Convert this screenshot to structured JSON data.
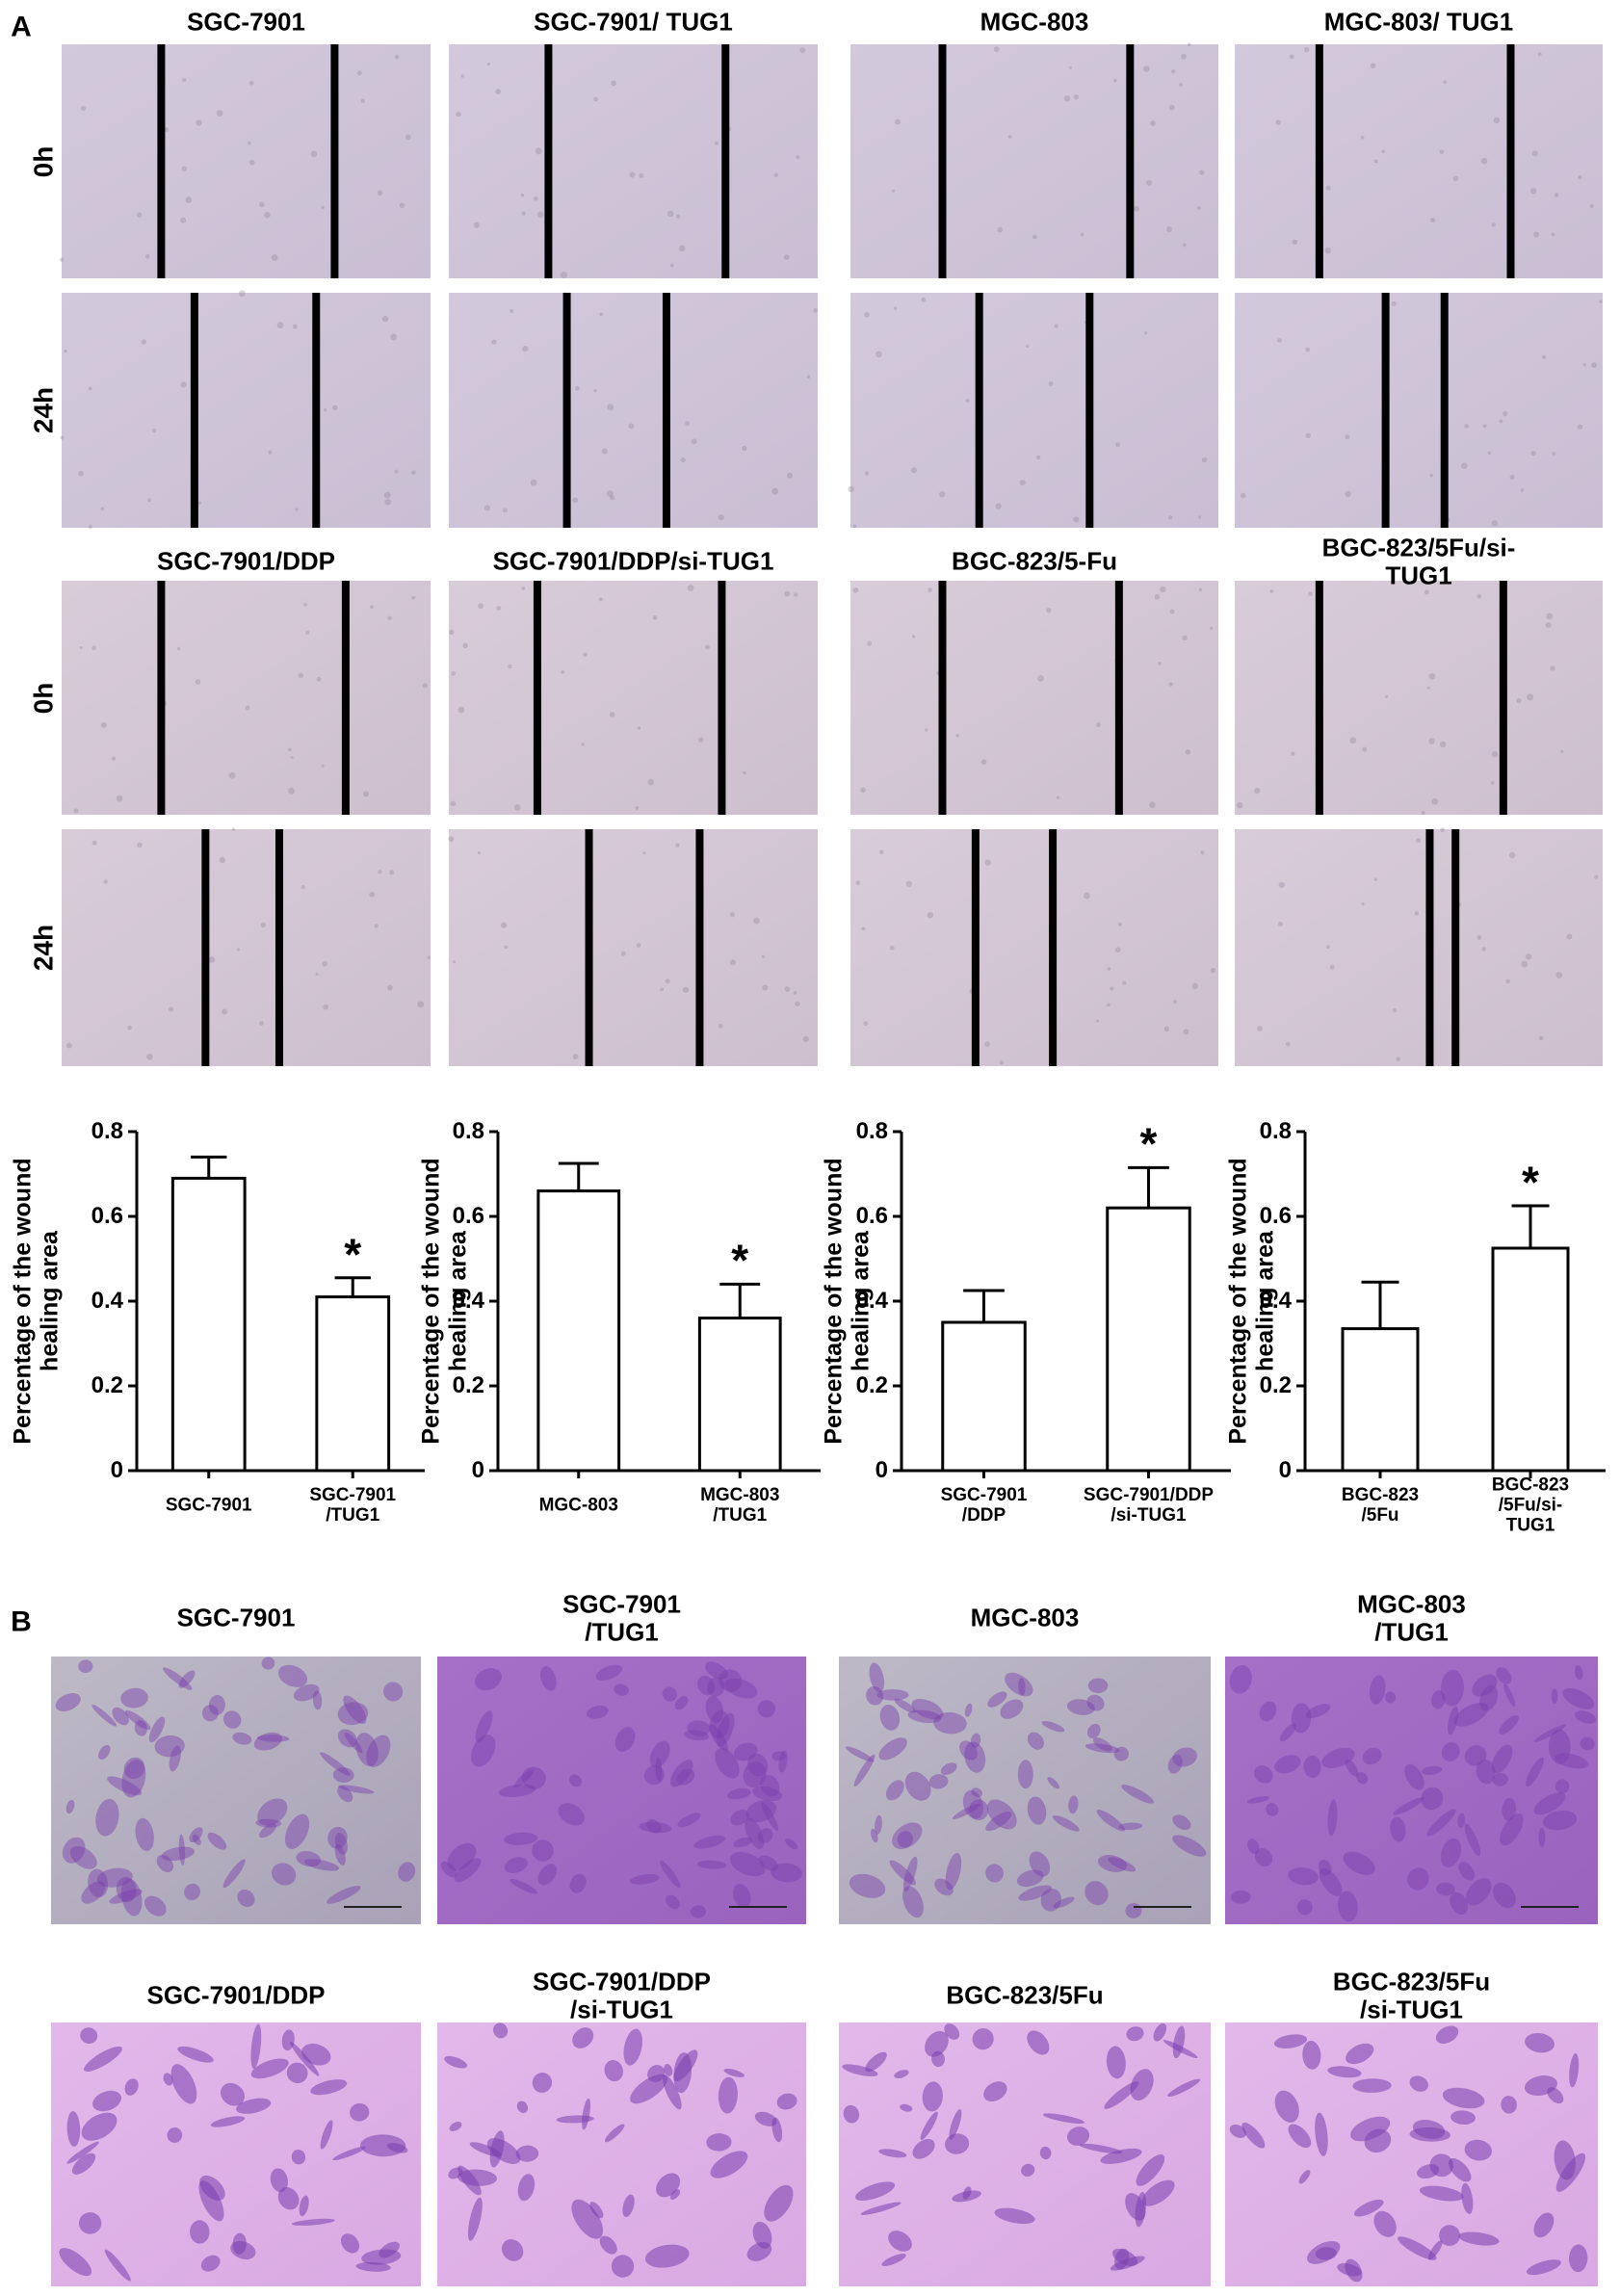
{
  "panel_a": {
    "label": "A",
    "groups": [
      {
        "titles": [
          "SGC-7901",
          "SGC-7901/ TUG1",
          "MGC-803",
          "MGC-803/ TUG1"
        ],
        "row_labels": [
          "0h",
          "24h"
        ]
      },
      {
        "titles": [
          "SGC-7901/DDP",
          "SGC-7901/DDP/si-TUG1",
          "BGC-823/5-Fu",
          "BGC-823/5Fu/si-TUG1"
        ],
        "row_labels": [
          "0h",
          "24h"
        ]
      }
    ]
  },
  "chart_data": [
    {
      "type": "bar",
      "y_label": "Percentage of the wound\nhealing area",
      "categories": [
        "SGC-7901",
        "SGC-7901\n/TUG1"
      ],
      "values": [
        0.69,
        0.41
      ],
      "errors": [
        0.05,
        0.045
      ],
      "annotation": "*",
      "color": "#ffffff",
      "ylim": [
        0,
        0.8
      ],
      "yticks": [
        0,
        0.2,
        0.4,
        0.6,
        0.8
      ]
    },
    {
      "type": "bar",
      "y_label": "Percentage of the wound\nhealing area",
      "categories": [
        "MGC-803",
        "MGC-803\n/TUG1"
      ],
      "values": [
        0.66,
        0.36
      ],
      "errors": [
        0.065,
        0.08
      ],
      "annotation": "*",
      "color": "#ffffff",
      "ylim": [
        0,
        0.8
      ],
      "yticks": [
        0,
        0.2,
        0.4,
        0.6,
        0.8
      ]
    },
    {
      "type": "bar",
      "y_label": "Percentage of the wound\nhealing area",
      "categories": [
        "SGC-7901\n/DDP",
        "SGC-7901/DDP\n/si-TUG1"
      ],
      "values": [
        0.35,
        0.62
      ],
      "errors": [
        0.075,
        0.095
      ],
      "annotation": "*",
      "color": "#ffffff",
      "ylim": [
        0,
        0.8
      ],
      "yticks": [
        0,
        0.2,
        0.4,
        0.6,
        0.8
      ]
    },
    {
      "type": "bar",
      "y_label": "Percentage of the wound\nhealing area",
      "categories": [
        "BGC-823\n/5Fu",
        "BGC-823\n/5Fu/si-TUG1"
      ],
      "values": [
        0.335,
        0.525
      ],
      "errors": [
        0.11,
        0.1
      ],
      "annotation": "*",
      "color": "#ffffff",
      "ylim": [
        0,
        0.8
      ],
      "yticks": [
        0,
        0.2,
        0.4,
        0.6,
        0.8
      ]
    }
  ],
  "panel_b": {
    "label": "B",
    "rows": [
      {
        "titles": [
          "SGC-7901",
          "SGC-7901\n/TUG1",
          "MGC-803",
          "MGC-803\n/TUG1"
        ]
      },
      {
        "titles": [
          "SGC-7901/DDP",
          "SGC-7901/DDP\n/si-TUG1",
          "BGC-823/5Fu",
          "BGC-823/5Fu\n/si-TUG1"
        ]
      }
    ]
  }
}
